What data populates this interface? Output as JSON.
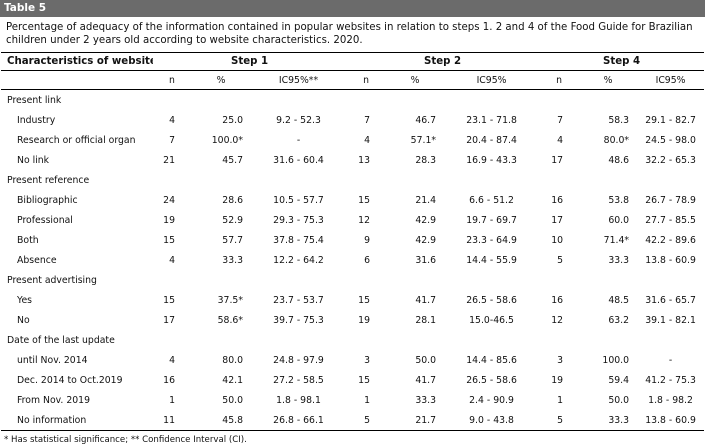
{
  "table_label": "Table 5",
  "caption": "Percentage of adequacy of the information contained in popular websites in relation to steps 1. 2 and 4 of the Food Guide for Brazilian children under 2 years old according to website characteristics. 2020.",
  "header": {
    "characteristics": "Characteristics of websites",
    "step1": "Step 1",
    "step2": "Step 2",
    "step4": "Step 4",
    "sub": {
      "n1": "n",
      "p1": "%",
      "ci1": "IC95%**",
      "n2": "n",
      "p2": "%",
      "ci2": "IC95%",
      "n4": "n",
      "p4": "%",
      "ci4": "IC95%"
    }
  },
  "sections": [
    {
      "title": "Present link",
      "rows": [
        {
          "label": "Industry",
          "n1": "4",
          "p1": "25.0",
          "ci1": "9.2 - 52.3",
          "n2": "7",
          "p2": "46.7",
          "ci2": "23.1 - 71.8",
          "n4": "7",
          "p4": "58.3",
          "ci4": "29.1 - 82.7"
        },
        {
          "label": "Research or official organ",
          "n1": "7",
          "p1": "100.0*",
          "ci1": "-",
          "n2": "4",
          "p2": "57.1*",
          "ci2": "20.4 - 87.4",
          "n4": "4",
          "p4": "80.0*",
          "ci4": "24.5 - 98.0"
        },
        {
          "label": "No link",
          "n1": "21",
          "p1": "45.7",
          "ci1": "31.6 - 60.4",
          "n2": "13",
          "p2": "28.3",
          "ci2": "16.9 - 43.3",
          "n4": "17",
          "p4": "48.6",
          "ci4": "32.2 - 65.3"
        }
      ]
    },
    {
      "title": "Present reference",
      "rows": [
        {
          "label": "Bibliographic",
          "n1": "24",
          "p1": "28.6",
          "ci1": "10.5 - 57.7",
          "n2": "15",
          "p2": "21.4",
          "ci2": "6.6 - 51.2",
          "n4": "16",
          "p4": "53.8",
          "ci4": "26.7 - 78.9"
        },
        {
          "label": "Professional",
          "n1": "19",
          "p1": "52.9",
          "ci1": "29.3 - 75.3",
          "n2": "12",
          "p2": "42.9",
          "ci2": "19.7 - 69.7",
          "n4": "17",
          "p4": "60.0",
          "ci4": "27.7 - 85.5"
        },
        {
          "label": "Both",
          "n1": "15",
          "p1": "57.7",
          "ci1": "37.8 - 75.4",
          "n2": "9",
          "p2": "42.9",
          "ci2": "23.3 - 64.9",
          "n4": "10",
          "p4": "71.4*",
          "ci4": "42.2 - 89.6"
        },
        {
          "label": "Absence",
          "n1": "4",
          "p1": "33.3",
          "ci1": "12.2 - 64.2",
          "n2": "6",
          "p2": "31.6",
          "ci2": "14.4 - 55.9",
          "n4": "5",
          "p4": "33.3",
          "ci4": "13.8 - 60.9"
        }
      ]
    },
    {
      "title": "Present advertising",
      "rows": [
        {
          "label": "Yes",
          "n1": "15",
          "p1": "37.5*",
          "ci1": "23.7 - 53.7",
          "n2": "15",
          "p2": "41.7",
          "ci2": "26.5 - 58.6",
          "n4": "16",
          "p4": "48.5",
          "ci4": "31.6 - 65.7"
        },
        {
          "label": "No",
          "n1": "17",
          "p1": "58.6*",
          "ci1": "39.7 - 75.3",
          "n2": "19",
          "p2": "28.1",
          "ci2": "15.0-46.5",
          "n4": "12",
          "p4": "63.2",
          "ci4": "39.1 - 82.1"
        }
      ]
    },
    {
      "title": "Date of the last update",
      "rows": [
        {
          "label": "until Nov. 2014",
          "n1": "4",
          "p1": "80.0",
          "ci1": "24.8 - 97.9",
          "n2": "3",
          "p2": "50.0",
          "ci2": "14.4 - 85.6",
          "n4": "3",
          "p4": "100.0",
          "ci4": "-"
        },
        {
          "label": "Dec. 2014 to Oct.2019",
          "n1": "16",
          "p1": "42.1",
          "ci1": "27.2 - 58.5",
          "n2": "15",
          "p2": "41.7",
          "ci2": "26.5 - 58.6",
          "n4": "19",
          "p4": "59.4",
          "ci4": "41.2 - 75.3"
        },
        {
          "label": "From Nov. 2019",
          "n1": "1",
          "p1": "50.0",
          "ci1": "1.8 - 98.1",
          "n2": "1",
          "p2": "33.3",
          "ci2": "2.4 - 90.9",
          "n4": "1",
          "p4": "50.0",
          "ci4": "1.8 - 98.2"
        },
        {
          "label": "No information",
          "n1": "11",
          "p1": "45.8",
          "ci1": "26.8 - 66.1",
          "n2": "5",
          "p2": "21.7",
          "ci2": "9.0 - 43.8",
          "n4": "5",
          "p4": "33.3",
          "ci4": "13.8 - 60.9"
        }
      ]
    }
  ],
  "footnote": "* Has statistical significance; ** Confidence Interval (CI)."
}
